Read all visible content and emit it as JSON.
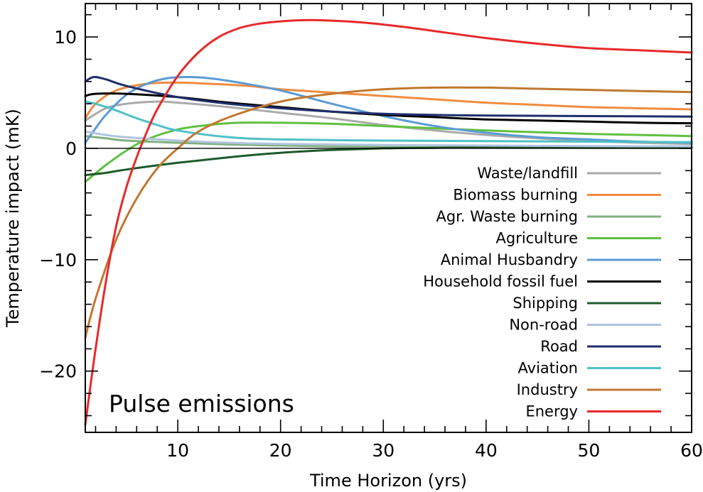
{
  "chart_data": {
    "type": "line",
    "title": "",
    "xlabel": "Time Horizon (yrs)",
    "ylabel": "Temperature impact  (mK)",
    "annotation": "Pulse emissions",
    "xlim": [
      1,
      60
    ],
    "ylim": [
      -25.5,
      13
    ],
    "xticks": [
      10,
      20,
      30,
      40,
      50,
      60
    ],
    "yticks": [
      -20,
      -10,
      0,
      10
    ],
    "zero_line": true,
    "grid": false,
    "legend_position": "bottom-right",
    "series": [
      {
        "name": "Waste/landfill",
        "color": "#aaaaaa",
        "points": [
          [
            1,
            2.5
          ],
          [
            3,
            3.6
          ],
          [
            5,
            4.0
          ],
          [
            8,
            4.2
          ],
          [
            10,
            4.1
          ],
          [
            15,
            3.7
          ],
          [
            20,
            3.2
          ],
          [
            25,
            2.7
          ],
          [
            30,
            2.1
          ],
          [
            35,
            1.6
          ],
          [
            40,
            1.2
          ],
          [
            45,
            0.9
          ],
          [
            50,
            0.65
          ],
          [
            55,
            0.5
          ],
          [
            60,
            0.4
          ]
        ]
      },
      {
        "name": "Biomass burning",
        "color": "#f08c40",
        "points": [
          [
            1,
            2.7
          ],
          [
            2,
            4.0
          ],
          [
            4,
            5.2
          ],
          [
            7,
            5.8
          ],
          [
            10,
            5.9
          ],
          [
            13,
            5.8
          ],
          [
            17,
            5.6
          ],
          [
            20,
            5.3
          ],
          [
            25,
            5.0
          ],
          [
            30,
            4.7
          ],
          [
            35,
            4.4
          ],
          [
            40,
            4.1
          ],
          [
            45,
            3.9
          ],
          [
            50,
            3.7
          ],
          [
            55,
            3.6
          ],
          [
            60,
            3.5
          ]
        ]
      },
      {
        "name": "Agr. Waste burning",
        "color": "#80b080",
        "points": [
          [
            1,
            1.1
          ],
          [
            3,
            0.9
          ],
          [
            5,
            0.7
          ],
          [
            10,
            0.5
          ],
          [
            15,
            0.35
          ],
          [
            20,
            0.25
          ],
          [
            30,
            0.12
          ],
          [
            40,
            0.08
          ],
          [
            50,
            0.05
          ],
          [
            60,
            0.03
          ]
        ]
      },
      {
        "name": "Agriculture",
        "color": "#60c040",
        "points": [
          [
            1,
            -3.0
          ],
          [
            3,
            -1.5
          ],
          [
            5,
            -0.2
          ],
          [
            7,
            0.8
          ],
          [
            10,
            1.7
          ],
          [
            13,
            2.1
          ],
          [
            16,
            2.3
          ],
          [
            20,
            2.3
          ],
          [
            25,
            2.2
          ],
          [
            30,
            2.0
          ],
          [
            35,
            1.8
          ],
          [
            40,
            1.6
          ],
          [
            45,
            1.45
          ],
          [
            50,
            1.3
          ],
          [
            55,
            1.2
          ],
          [
            60,
            1.1
          ]
        ]
      },
      {
        "name": "Animal Husbandry",
        "color": "#5b9bd5",
        "points": [
          [
            1,
            0.5
          ],
          [
            2,
            1.8
          ],
          [
            3,
            3.0
          ],
          [
            5,
            4.8
          ],
          [
            7,
            5.8
          ],
          [
            9,
            6.3
          ],
          [
            11,
            6.4
          ],
          [
            13,
            6.3
          ],
          [
            16,
            5.9
          ],
          [
            20,
            5.2
          ],
          [
            25,
            4.0
          ],
          [
            30,
            2.9
          ],
          [
            35,
            2.0
          ],
          [
            40,
            1.4
          ],
          [
            45,
            1.0
          ],
          [
            50,
            0.8
          ],
          [
            55,
            0.6
          ],
          [
            60,
            0.5
          ]
        ]
      },
      {
        "name": "Household fossil fuel",
        "color": "#000000",
        "points": [
          [
            1,
            4.7
          ],
          [
            2,
            4.9
          ],
          [
            5,
            4.9
          ],
          [
            10,
            4.6
          ],
          [
            15,
            4.1
          ],
          [
            20,
            3.7
          ],
          [
            25,
            3.3
          ],
          [
            30,
            3.0
          ],
          [
            35,
            2.8
          ],
          [
            40,
            2.6
          ],
          [
            45,
            2.5
          ],
          [
            50,
            2.4
          ],
          [
            55,
            2.3
          ],
          [
            60,
            2.25
          ]
        ]
      },
      {
        "name": "Shipping",
        "color": "#1d5a2a",
        "points": [
          [
            1,
            -2.4
          ],
          [
            3,
            -2.2
          ],
          [
            5,
            -1.9
          ],
          [
            10,
            -1.3
          ],
          [
            15,
            -0.8
          ],
          [
            20,
            -0.4
          ],
          [
            25,
            -0.15
          ],
          [
            30,
            0.0
          ],
          [
            35,
            0.05
          ],
          [
            40,
            0.1
          ],
          [
            50,
            0.1
          ],
          [
            60,
            0.1
          ]
        ]
      },
      {
        "name": "Non-road",
        "color": "#b0c4de",
        "points": [
          [
            1,
            1.5
          ],
          [
            3,
            1.2
          ],
          [
            5,
            1.0
          ],
          [
            10,
            0.7
          ],
          [
            15,
            0.5
          ],
          [
            20,
            0.4
          ],
          [
            30,
            0.3
          ],
          [
            40,
            0.25
          ],
          [
            50,
            0.2
          ],
          [
            60,
            0.18
          ]
        ]
      },
      {
        "name": "Road",
        "color": "#1f2f6b",
        "points": [
          [
            1,
            6.0
          ],
          [
            1.8,
            6.4
          ],
          [
            3,
            6.2
          ],
          [
            5,
            5.6
          ],
          [
            10,
            4.6
          ],
          [
            15,
            4.0
          ],
          [
            20,
            3.6
          ],
          [
            25,
            3.3
          ],
          [
            30,
            3.1
          ],
          [
            35,
            3.0
          ],
          [
            40,
            2.95
          ],
          [
            50,
            2.9
          ],
          [
            60,
            2.85
          ]
        ]
      },
      {
        "name": "Aviation",
        "color": "#50c0c8",
        "points": [
          [
            1,
            4.2
          ],
          [
            2,
            4.0
          ],
          [
            4,
            3.4
          ],
          [
            6,
            2.7
          ],
          [
            8,
            2.1
          ],
          [
            10,
            1.6
          ],
          [
            15,
            1.0
          ],
          [
            20,
            0.8
          ],
          [
            30,
            0.7
          ],
          [
            40,
            0.65
          ],
          [
            50,
            0.6
          ],
          [
            60,
            0.55
          ]
        ]
      },
      {
        "name": "Industry",
        "color": "#c07830",
        "points": [
          [
            1,
            -17.0
          ],
          [
            2,
            -13.5
          ],
          [
            4,
            -8.2
          ],
          [
            6,
            -4.5
          ],
          [
            8,
            -1.8
          ],
          [
            10,
            0.0
          ],
          [
            12,
            1.5
          ],
          [
            15,
            2.8
          ],
          [
            20,
            4.2
          ],
          [
            25,
            4.9
          ],
          [
            30,
            5.3
          ],
          [
            35,
            5.45
          ],
          [
            40,
            5.45
          ],
          [
            45,
            5.35
          ],
          [
            50,
            5.25
          ],
          [
            55,
            5.15
          ],
          [
            60,
            5.05
          ]
        ]
      },
      {
        "name": "Energy",
        "color": "#e8292b",
        "points": [
          [
            1,
            -24.8
          ],
          [
            2,
            -18.0
          ],
          [
            3,
            -12.0
          ],
          [
            4,
            -7.0
          ],
          [
            5,
            -3.5
          ],
          [
            6,
            -0.8
          ],
          [
            7,
            1.5
          ],
          [
            8,
            3.5
          ],
          [
            10,
            6.5
          ],
          [
            12,
            8.6
          ],
          [
            14,
            10.0
          ],
          [
            16,
            10.8
          ],
          [
            18,
            11.2
          ],
          [
            20,
            11.4
          ],
          [
            22,
            11.5
          ],
          [
            24,
            11.5
          ],
          [
            28,
            11.3
          ],
          [
            32,
            10.9
          ],
          [
            36,
            10.4
          ],
          [
            40,
            9.9
          ],
          [
            45,
            9.4
          ],
          [
            50,
            9.0
          ],
          [
            55,
            8.8
          ],
          [
            60,
            8.6
          ]
        ]
      }
    ]
  }
}
